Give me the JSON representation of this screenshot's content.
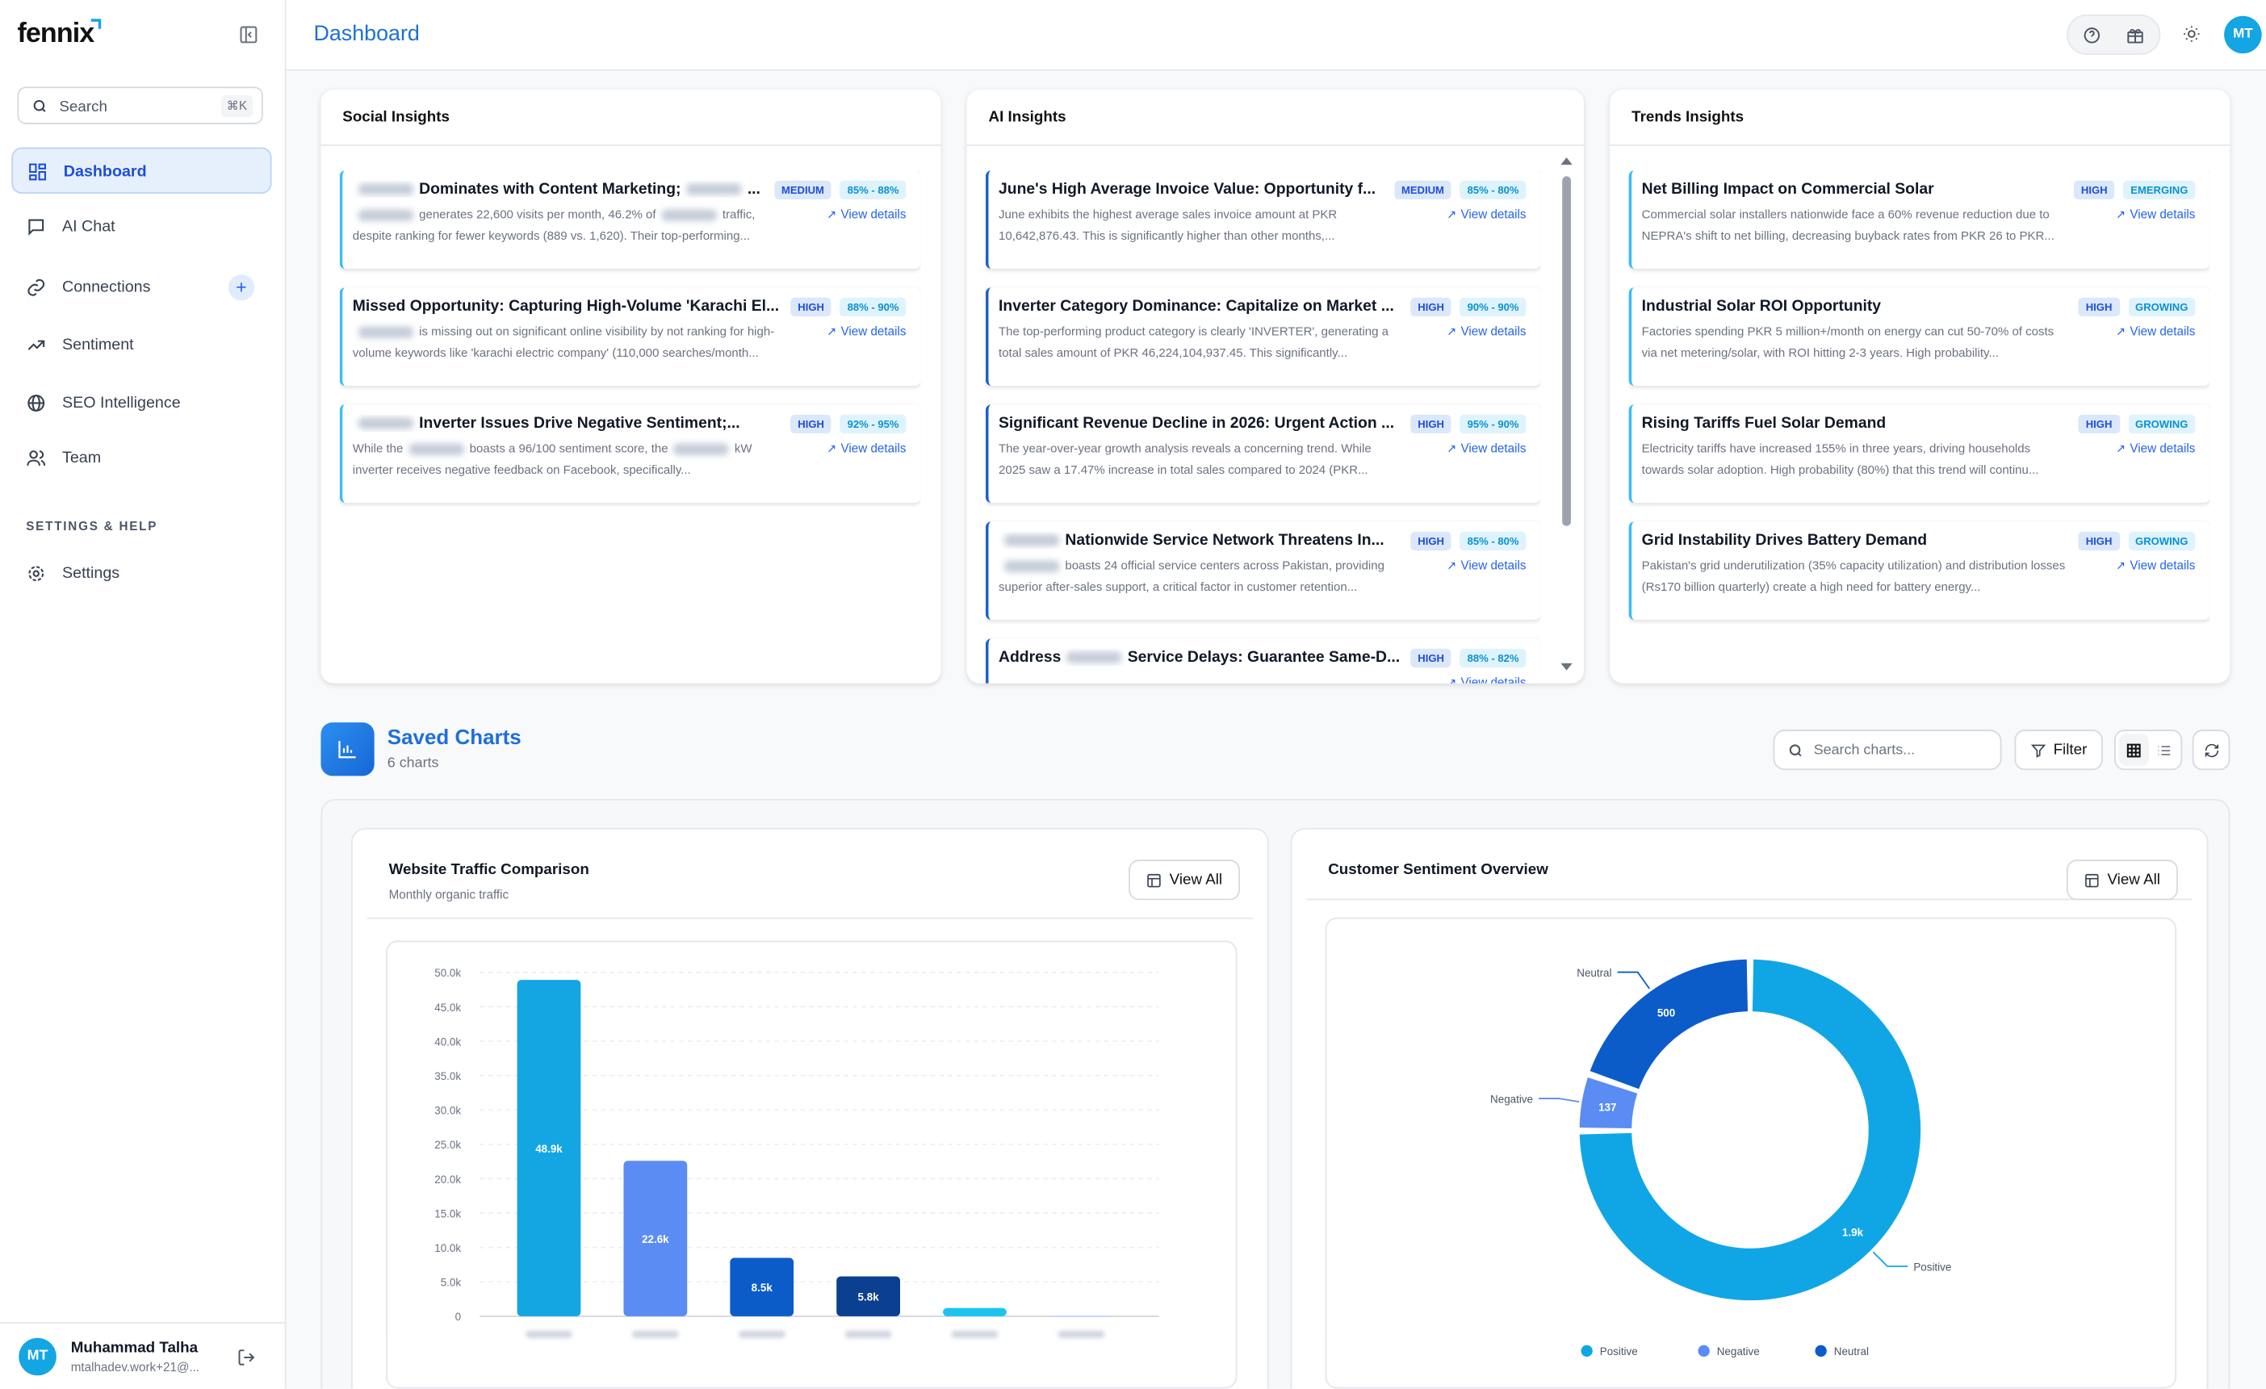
{
  "sidebar": {
    "logo": "fennix",
    "search": {
      "placeholder": "Search",
      "shortcut": "⌘K"
    },
    "nav": [
      {
        "label": "Dashboard",
        "active": true
      },
      {
        "label": "AI Chat"
      },
      {
        "label": "Connections"
      },
      {
        "label": "Sentiment"
      },
      {
        "label": "SEO Intelligence"
      },
      {
        "label": "Team"
      }
    ],
    "section_label": "SETTINGS & HELP",
    "settings_nav": [
      {
        "label": "Settings"
      }
    ],
    "user": {
      "initials": "MT",
      "name": "Muhammad Talha",
      "email": "mtalhadev.work+21@..."
    }
  },
  "header": {
    "title": "Dashboard",
    "avatar": "MT"
  },
  "insight_link": "View details",
  "insights": [
    {
      "title": "Social Insights",
      "items": [
        {
          "title": [
            {
              "redacted": true
            },
            "Dominates with Content Marketing;",
            {
              "redacted": true
            },
            "..."
          ],
          "level": "MEDIUM",
          "tag": "85% - 88%",
          "description": [
            {
              "redacted": true
            },
            "generates 22,600 visits per month, 46.2% of",
            {
              "redacted": true
            },
            "traffic, despite ranking for fewer keywords (889 vs. 1,620). Their top-performing..."
          ]
        },
        {
          "title": [
            "Missed Opportunity: Capturing High-Volume 'Karachi El..."
          ],
          "level": "HIGH",
          "tag": "88% - 90%",
          "description": [
            {
              "redacted": true
            },
            "is missing out on significant online visibility by not ranking for high-volume keywords like 'karachi electric company' (110,000 searches/month..."
          ]
        },
        {
          "title": [
            {
              "redacted": true
            },
            "Inverter Issues Drive Negative Sentiment;..."
          ],
          "level": "HIGH",
          "tag": "92% - 95%",
          "description": [
            "While the",
            {
              "redacted": true
            },
            "boasts a 96/100 sentiment score, the",
            {
              "redacted": true
            },
            "kW inverter receives negative feedback on Facebook, specifically..."
          ]
        }
      ]
    },
    {
      "title": "AI Insights",
      "items": [
        {
          "title": [
            "June's High Average Invoice Value: Opportunity f..."
          ],
          "level": "MEDIUM",
          "tag": "85% - 80%",
          "description": [
            "June exhibits the highest average sales invoice amount at PKR 10,642,876.43. This is significantly higher than other months,..."
          ]
        },
        {
          "title": [
            "Inverter Category Dominance: Capitalize on Market ..."
          ],
          "level": "HIGH",
          "tag": "90% - 90%",
          "description": [
            "The top-performing product category is clearly 'INVERTER', generating a total sales amount of PKR 46,224,104,937.45. This significantly..."
          ]
        },
        {
          "title": [
            "Significant Revenue Decline in 2026: Urgent Action ..."
          ],
          "level": "HIGH",
          "tag": "95% - 90%",
          "description": [
            "The year-over-year growth analysis reveals a concerning trend. While 2025 saw a 17.47% increase in total sales compared to 2024 (PKR..."
          ]
        },
        {
          "title": [
            {
              "redacted": true
            },
            "Nationwide Service Network Threatens In..."
          ],
          "level": "HIGH",
          "tag": "85% - 80%",
          "description": [
            {
              "redacted": true
            },
            "boasts 24 official service centers across Pakistan, providing superior after-sales support, a critical factor in customer retention..."
          ]
        },
        {
          "title": [
            "Address",
            {
              "redacted": true
            },
            "Service Delays: Guarantee Same-D..."
          ],
          "level": "HIGH",
          "tag": "88% - 82%"
        }
      ]
    },
    {
      "title": "Trends Insights",
      "items": [
        {
          "title": [
            "Net Billing Impact on Commercial Solar"
          ],
          "level": "HIGH",
          "tag": "EMERGING",
          "description": [
            "Commercial solar installers nationwide face a 60% revenue reduction due to NEPRA's shift to net billing, decreasing buyback rates from PKR 26 to PKR..."
          ]
        },
        {
          "title": [
            "Industrial Solar ROI Opportunity"
          ],
          "level": "HIGH",
          "tag": "GROWING",
          "description": [
            "Factories spending PKR 5 million+/month on energy can cut 50-70% of costs via net metering/solar, with ROI hitting 2-3 years. High probability..."
          ]
        },
        {
          "title": [
            "Rising Tariffs Fuel Solar Demand"
          ],
          "level": "HIGH",
          "tag": "GROWING",
          "description": [
            "Electricity tariffs have increased 155% in three years, driving households towards solar adoption. High probability (80%) that this trend will continu..."
          ]
        },
        {
          "title": [
            "Grid Instability Drives Battery Demand"
          ],
          "level": "HIGH",
          "tag": "GROWING",
          "description": [
            "Pakistan's grid underutilization (35% capacity utilization) and distribution losses (Rs170 billion quarterly) create a high need for battery energy..."
          ]
        }
      ]
    }
  ],
  "saved_charts": {
    "title": "Saved Charts",
    "count": "6 charts",
    "search_placeholder": "Search charts...",
    "filter": "Filter",
    "view_all": "View All"
  },
  "chart_data": [
    {
      "type": "bar",
      "title": "Website Traffic Comparison",
      "subtitle": "Monthly organic traffic",
      "categories": [
        null,
        null,
        null,
        null,
        null,
        null
      ],
      "values": [
        48900,
        22600,
        8500,
        5800,
        1200,
        100
      ],
      "value_labels": [
        "48.9k",
        "22.6k",
        "8.5k",
        "5.8k",
        null,
        null
      ],
      "colors": [
        "#14a5e3",
        "#5b8cf3",
        "#0b5cc9",
        "#0b3f8f",
        "#1cc3ef",
        "#c7d2fe"
      ],
      "ylim": [
        0,
        50000
      ],
      "yticks": [
        0,
        {
          "value": 5000,
          "label": "5.0k"
        },
        {
          "value": 10000,
          "label": "10.0k"
        },
        {
          "value": 15000,
          "label": "15.0k"
        },
        {
          "value": 20000,
          "label": "20.0k"
        },
        {
          "value": 25000,
          "label": "25.0k"
        },
        {
          "value": 30000,
          "label": "30.0k"
        },
        {
          "value": 35000,
          "label": "35.0k"
        },
        {
          "value": 40000,
          "label": "40.0k"
        },
        {
          "value": 45000,
          "label": "45.0k"
        },
        {
          "value": 50000,
          "label": "50.0k"
        }
      ],
      "grid": true
    },
    {
      "type": "pie",
      "title": "Customer Sentiment Overview",
      "donut": true,
      "legend": "bottom",
      "categories": [
        "Positive",
        "Negative",
        "Neutral"
      ],
      "values": [
        1900,
        137,
        500
      ],
      "value_labels": [
        "1.9k",
        null,
        null
      ],
      "colors": [
        "#10a6e6",
        "#5b8cf3",
        "#0b5cc9"
      ]
    }
  ]
}
